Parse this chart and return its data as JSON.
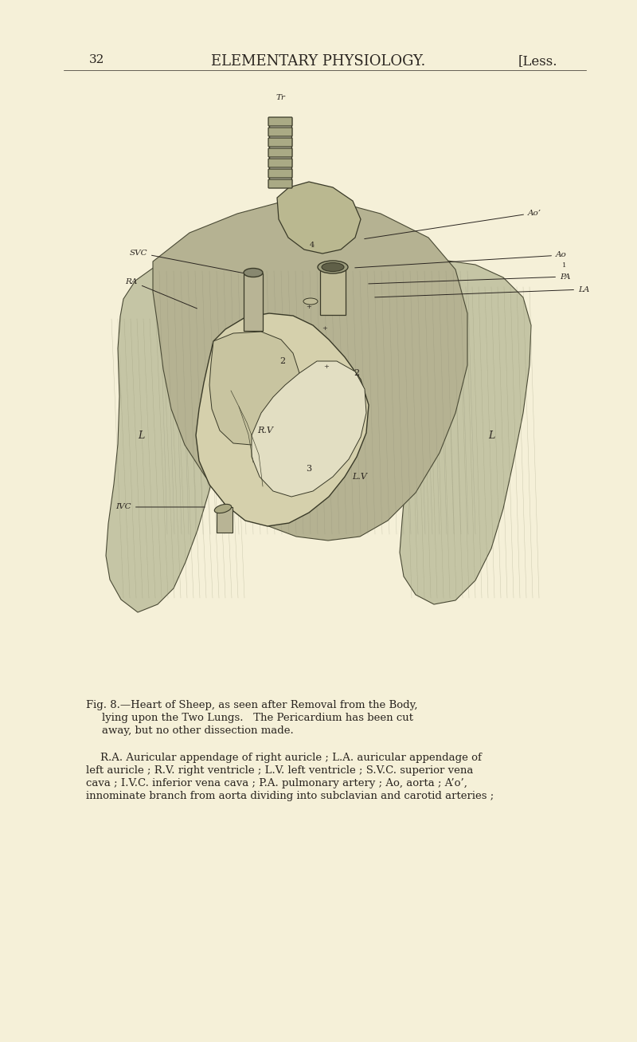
{
  "page_bg": "#f5f0d8",
  "page_number": "32",
  "header_title": "ELEMENTARY PHYSIOLOGY.",
  "header_right": "[Less.",
  "fig_caption_line1": "Fig. 8.—Heart of Sheep, as seen after Removal from the Body,",
  "fig_caption_line2": "lying upon the Two Lungs.   The Pericardium has been cut",
  "fig_caption_line3": "away, but no other dissection made.",
  "body_text_line1": "R.A. Auricular appendage of right auricle ; L.A. auricular appendage of",
  "body_text_line2": "left auricle ; R.V. right ventricle ; L.V. left ventricle ; S.V.C. superior vena",
  "body_text_line3": "cava ; I.V.C. inferior vena cava ; P.A. pulmonary artery ; Ao, aorta ; A’o’,",
  "body_text_line4": "innominate branch from aorta dividing into subclavian and carotid arteries ;",
  "text_color": "#2a2520",
  "header_fontsize": 13,
  "page_num_fontsize": 11,
  "caption_fontsize": 9.5,
  "body_fontsize": 9.5
}
